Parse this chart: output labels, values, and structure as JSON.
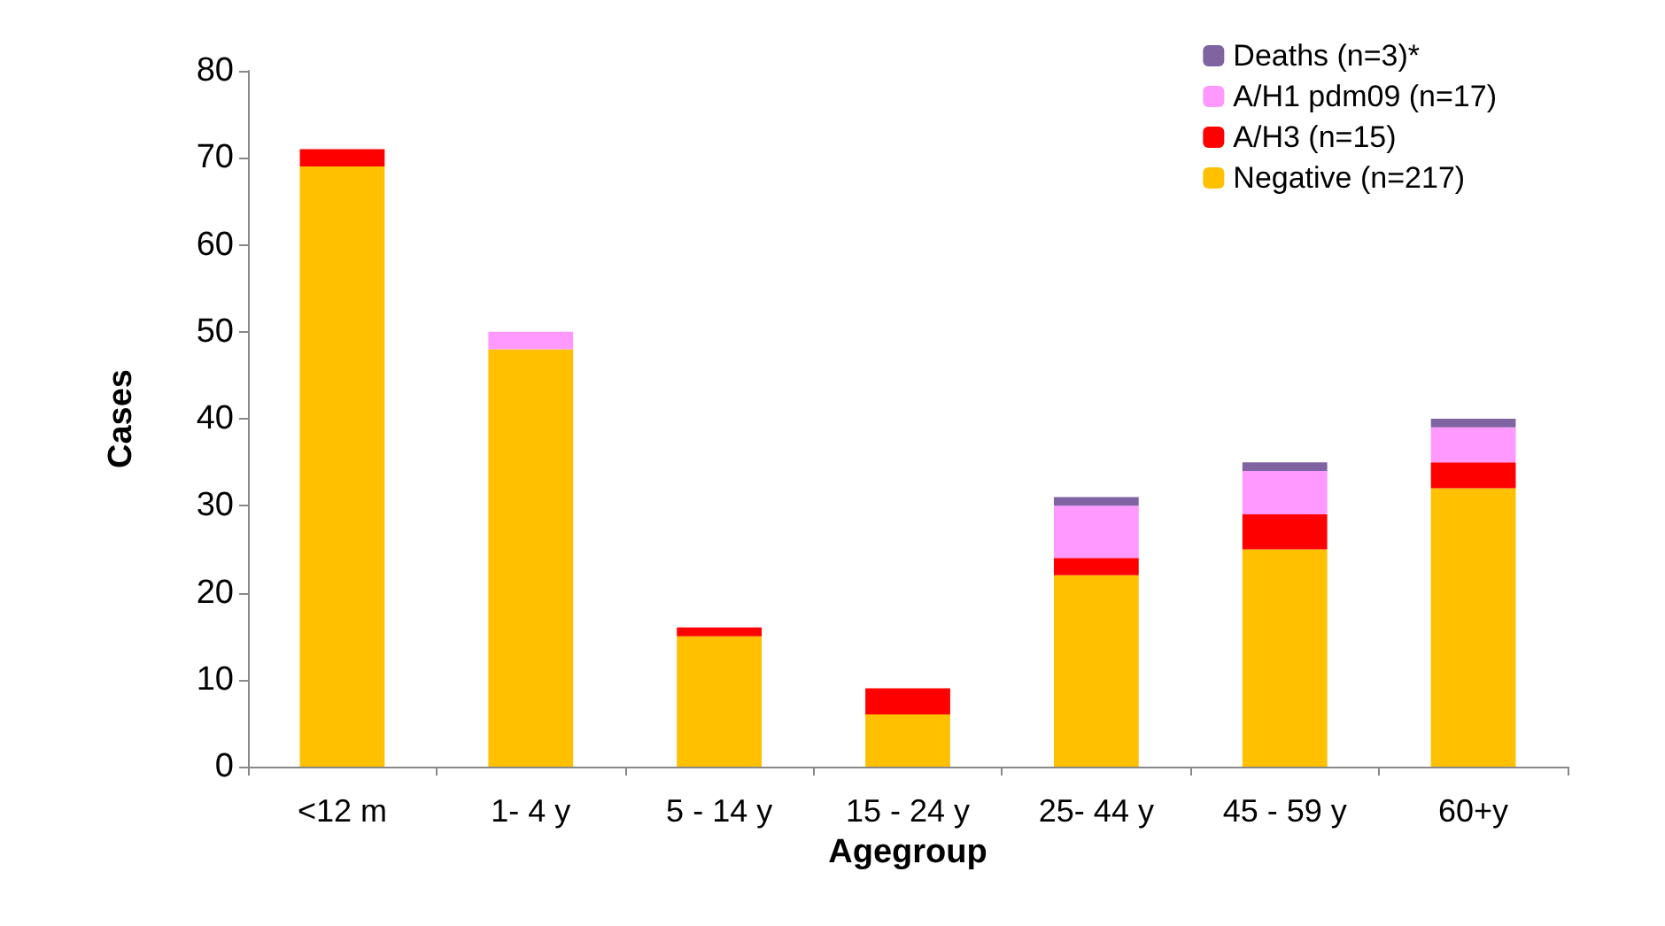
{
  "chart_data": {
    "type": "bar",
    "stacked": true,
    "xlabel": "Agegroup",
    "ylabel": "Cases",
    "categories": [
      "<12 m",
      "1- 4 y",
      "5 - 14 y",
      "15 - 24 y",
      "25- 44 y",
      "45 - 59 y",
      "60+y"
    ],
    "series": [
      {
        "name": "Negative (n=217)",
        "color": "#ffc000",
        "values": [
          69,
          48,
          15,
          6,
          22,
          25,
          32
        ]
      },
      {
        "name": "A/H3 (n=15)",
        "color": "#ff0000",
        "values": [
          2,
          0,
          1,
          3,
          2,
          4,
          3
        ]
      },
      {
        "name": "A/H1 pdm09 (n=17)",
        "color": "#ff99ff",
        "values": [
          0,
          2,
          0,
          0,
          6,
          5,
          4
        ]
      },
      {
        "name": "Deaths (n=3)*",
        "color": "#8064a2",
        "values": [
          0,
          0,
          0,
          0,
          1,
          1,
          1
        ]
      }
    ],
    "ylim": [
      0,
      80
    ],
    "yticks": [
      0,
      10,
      20,
      30,
      40,
      50,
      60,
      70,
      80
    ],
    "grid": false,
    "legend": "top right"
  }
}
